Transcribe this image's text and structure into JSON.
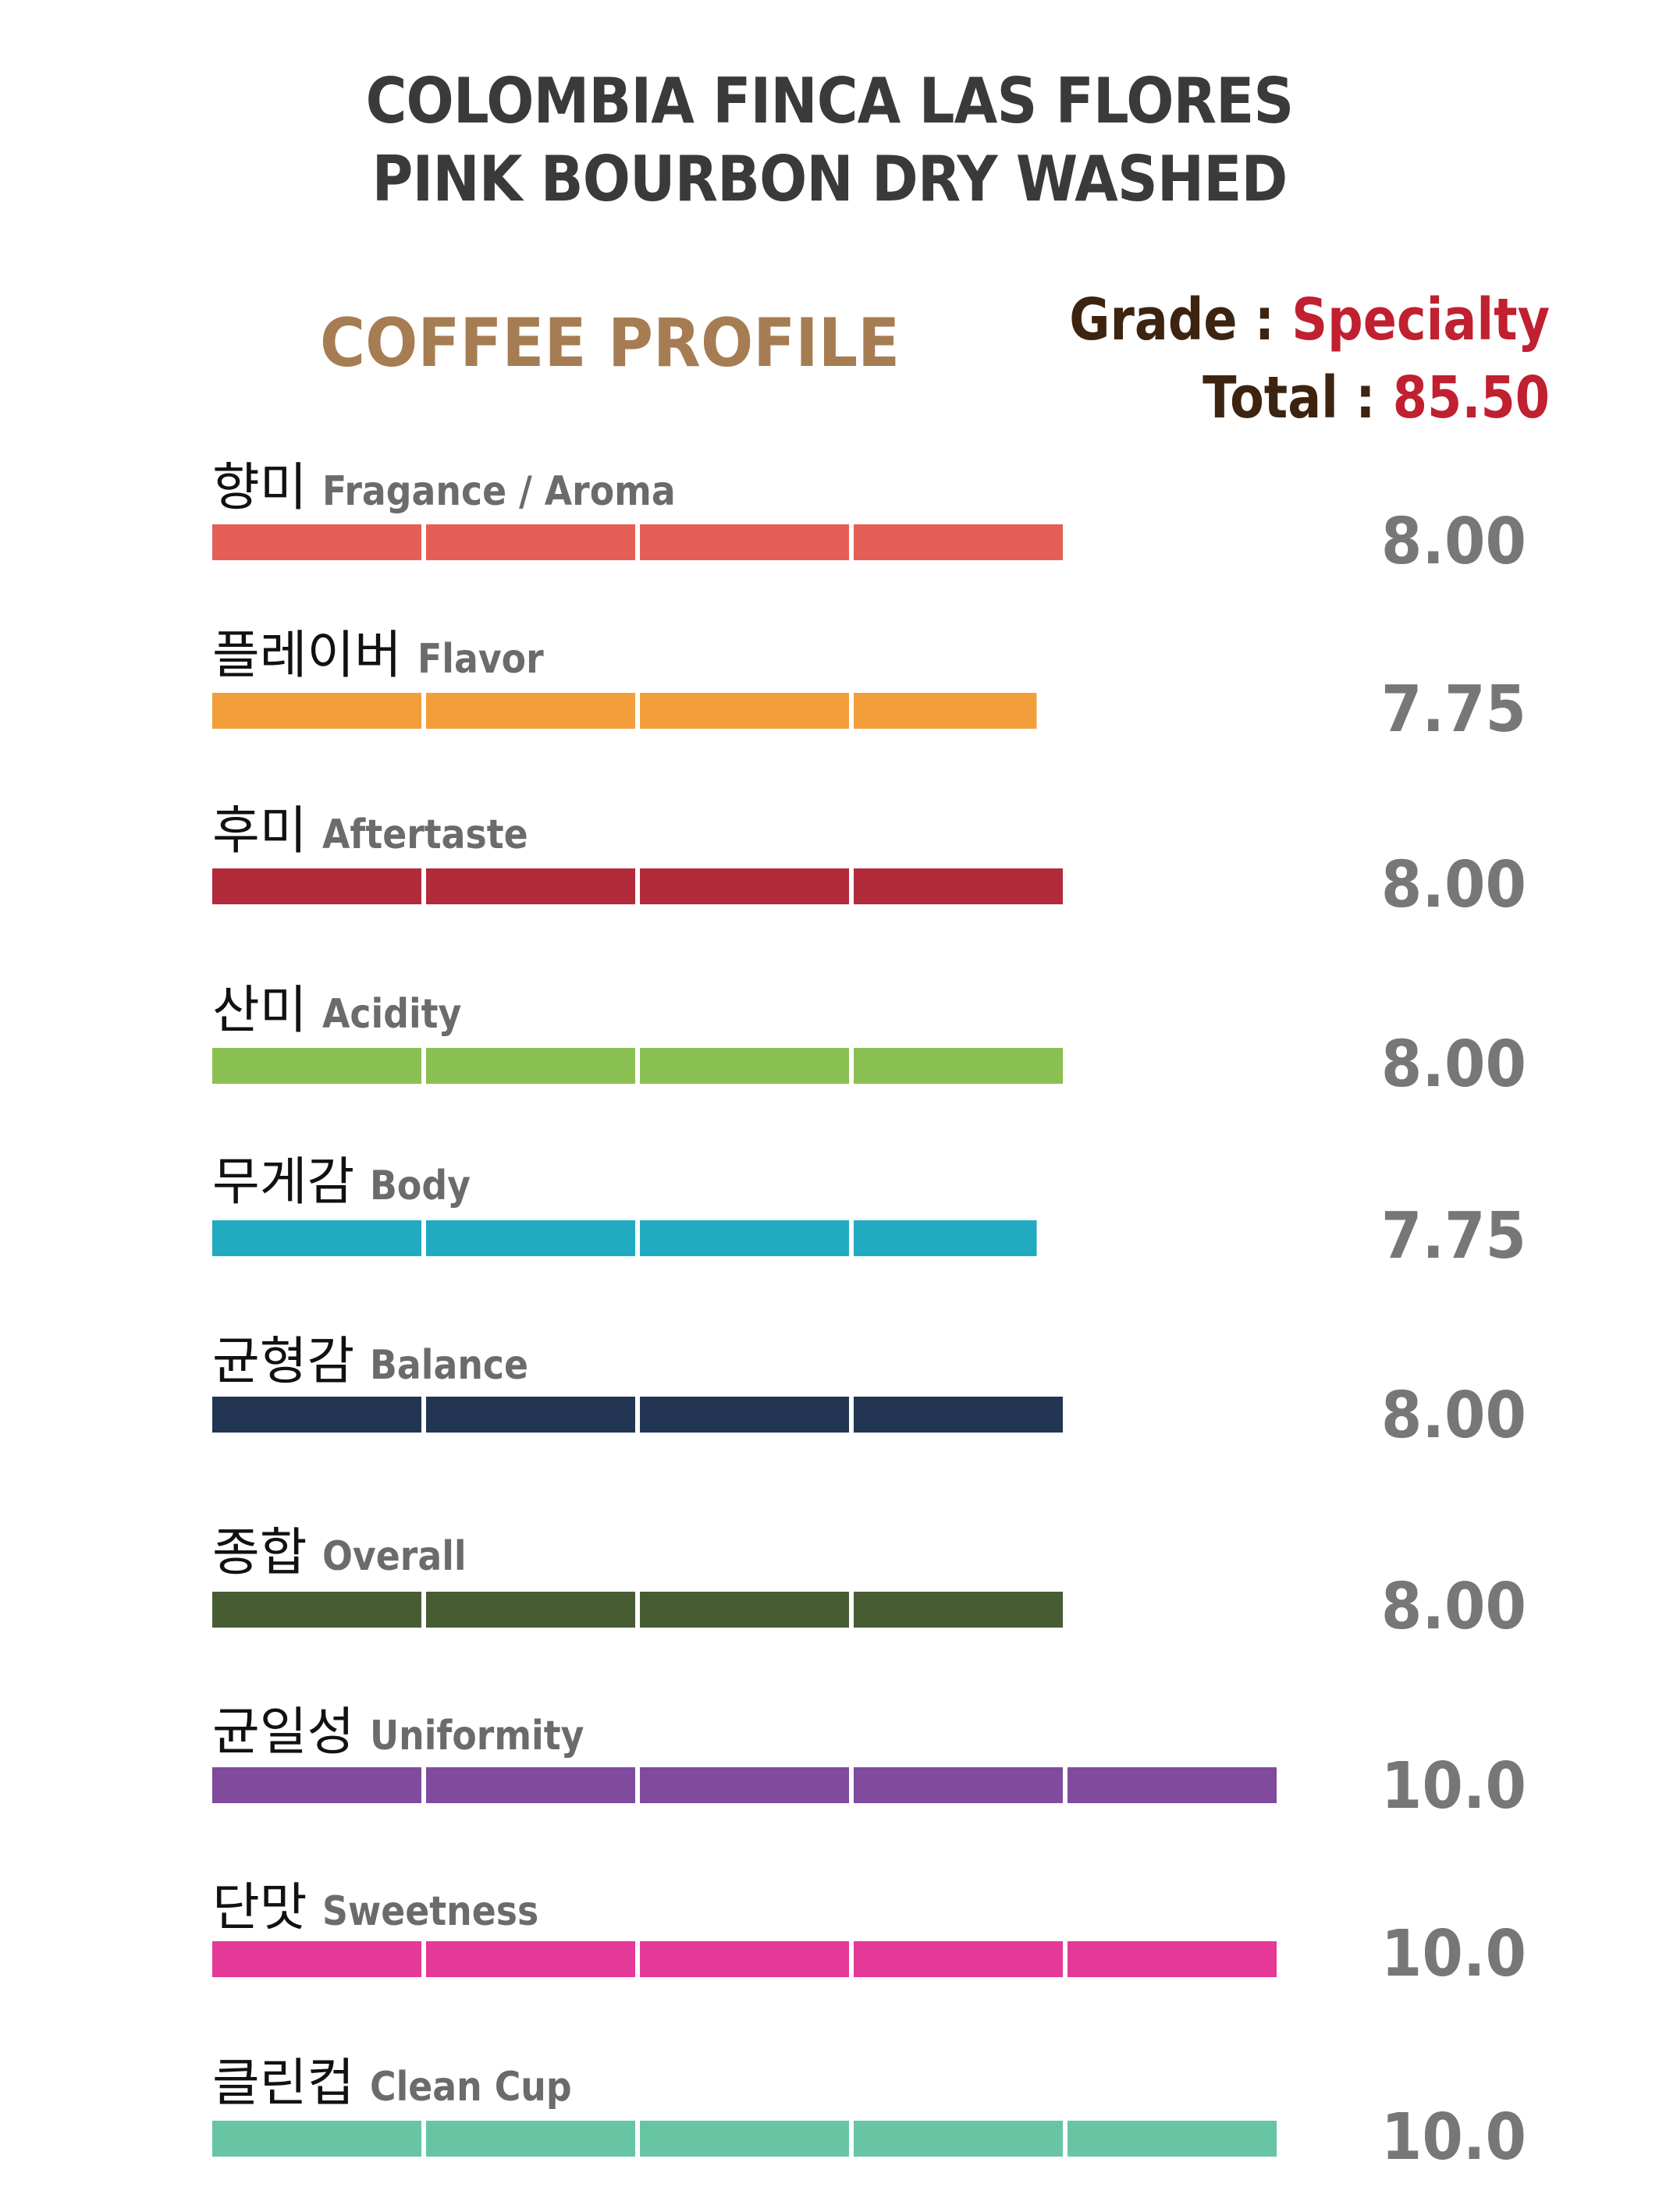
{
  "title": {
    "line1": "COLOMBIA FINCA LAS FLORES",
    "line2": "PINK BOURBON DRY WASHED"
  },
  "profile_heading": "COFFEE PROFILE",
  "grade": {
    "label": "Grade",
    "separator": ":",
    "value": "Specialty"
  },
  "total": {
    "label": "Total",
    "separator": ":",
    "value": "85.50"
  },
  "colors": {
    "title": "#3a3a3a",
    "heading": "#a67c52",
    "grade_label": "#3d2410",
    "grade_value": "#c0202f",
    "score": "#777777"
  },
  "chart_data": {
    "type": "bar",
    "orientation": "horizontal",
    "segments_per_bar": 5,
    "segment_value": 2,
    "xlim": [
      0,
      10
    ],
    "categories": [
      {
        "ko": "향미",
        "en": "Fragance / Aroma",
        "value": 8.0,
        "label": "8.00",
        "color": "#e55f57"
      },
      {
        "ko": "플레이버",
        "en": "Flavor",
        "value": 7.75,
        "label": "7.75",
        "color": "#f29e3a"
      },
      {
        "ko": "후미",
        "en": "Aftertaste",
        "value": 8.0,
        "label": "8.00",
        "color": "#b22b3a"
      },
      {
        "ko": "산미",
        "en": "Acidity",
        "value": 8.0,
        "label": "8.00",
        "color": "#8abf52"
      },
      {
        "ko": "무게감",
        "en": "Body",
        "value": 7.75,
        "label": "7.75",
        "color": "#21abc0"
      },
      {
        "ko": "균형감",
        "en": "Balance",
        "value": 8.0,
        "label": "8.00",
        "color": "#223654"
      },
      {
        "ko": "종합",
        "en": "Overall",
        "value": 8.0,
        "label": "8.00",
        "color": "#485c33"
      },
      {
        "ko": "균일성",
        "en": "Uniformity",
        "value": 10.0,
        "label": "10.0",
        "color": "#804a9d"
      },
      {
        "ko": "단맛",
        "en": "Sweetness",
        "value": 10.0,
        "label": "10.0",
        "color": "#e43996"
      },
      {
        "ko": "클린컵",
        "en": "Clean Cup",
        "value": 10.0,
        "label": "10.0",
        "color": "#67c5a3"
      }
    ]
  }
}
